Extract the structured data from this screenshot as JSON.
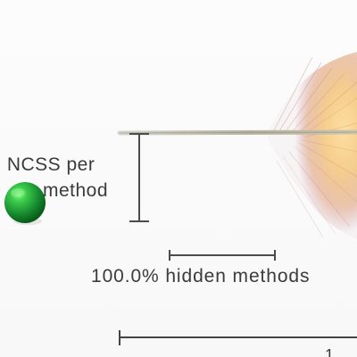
{
  "diagram": {
    "labels": {
      "ncss_line1": ") NCSS per",
      "ncss_line2": "method",
      "hidden_methods": "100.0% hidden methods",
      "bottom_fragment": "1"
    },
    "colors": {
      "sphere_light": "#58d05c",
      "sphere_mid": "#1f9f3b",
      "sphere_dark": "#0b6a1f",
      "text": "#3b3b3b",
      "scale_lines": "#4b4b4b",
      "fan_orange": "#f1b05b",
      "fan_red": "#a24f57"
    },
    "icons": {
      "sphere": "green-sphere-icon"
    }
  }
}
